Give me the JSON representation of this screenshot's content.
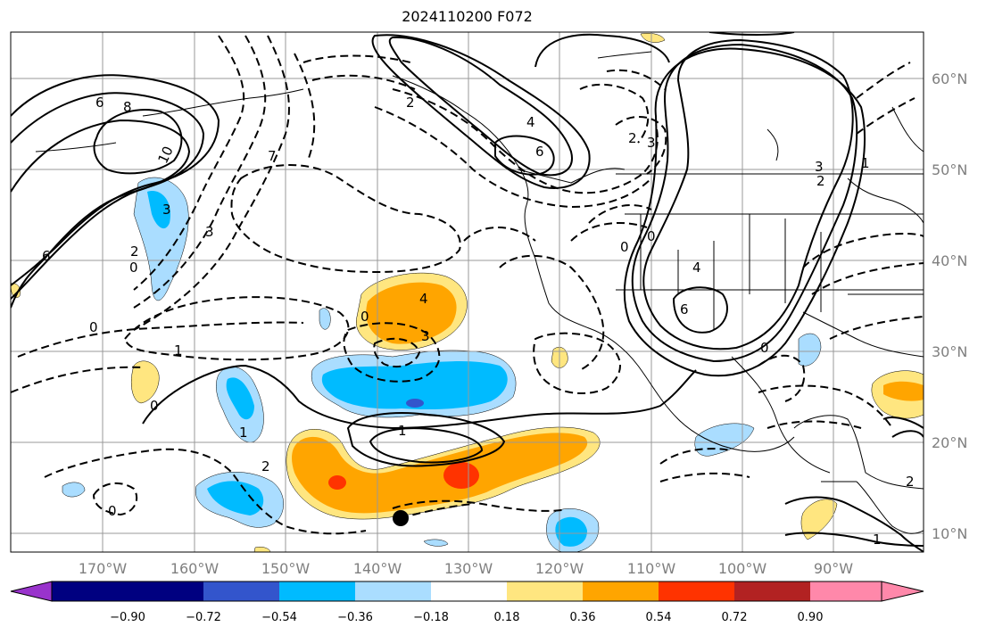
{
  "title": "2024110200 F072",
  "lon_labels": [
    "170°W",
    "160°W",
    "150°W",
    "140°W",
    "130°W",
    "120°W",
    "110°W",
    "100°W",
    "90°W"
  ],
  "lat_labels": [
    "60°N",
    "50°N",
    "40°N",
    "30°N",
    "20°N",
    "10°N"
  ],
  "colorbar": {
    "ticks": [
      "−0.90",
      "−0.72",
      "−0.54",
      "−0.36",
      "−0.18",
      "0.18",
      "0.36",
      "0.54",
      "0.72",
      "0.90"
    ],
    "colors": [
      "#9933cc",
      "#000080",
      "#3355cc",
      "#00bbff",
      "#aaddff",
      "#ffffff",
      "#ffe680",
      "#ffa500",
      "#ff3300",
      "#b22222",
      "#ff88aa"
    ]
  },
  "contour_labels": [
    "6",
    "8",
    "10",
    "6",
    "0",
    "0",
    "0",
    "0",
    "1",
    "2",
    "3",
    "3",
    "7",
    "4",
    "2",
    "6",
    "4",
    "2",
    "3",
    "0",
    "4",
    "6",
    "0",
    "3",
    "2",
    "1",
    "2",
    "1",
    "0",
    "3",
    "1",
    "1",
    "2",
    "0"
  ],
  "fill_colors": {
    "neg_1": "#aaddff",
    "neg_2": "#00bbff",
    "neg_3": "#3355cc",
    "pos_1": "#ffe680",
    "pos_2": "#ffa500",
    "pos_3": "#ff3300"
  },
  "map_extent": {
    "lon": [
      "180°W",
      "80°W"
    ],
    "lat": [
      "8°N",
      "66°N"
    ]
  }
}
